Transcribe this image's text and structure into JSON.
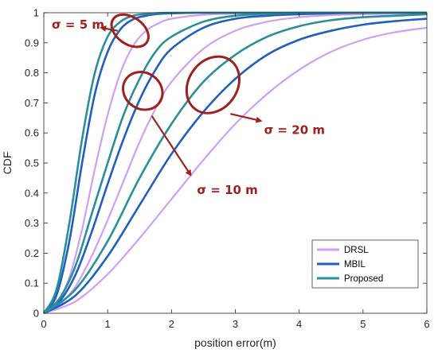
{
  "chart_data": {
    "type": "line",
    "xlabel": "position error(m)",
    "ylabel": "CDF",
    "xlim": [
      0,
      6
    ],
    "ylim": [
      0,
      1
    ],
    "x_ticks": [
      "0",
      "1",
      "2",
      "3",
      "4",
      "5",
      "6"
    ],
    "y_ticks": [
      "0",
      "0.1",
      "0.2",
      "0.3",
      "0.4",
      "0.5",
      "0.6",
      "0.7",
      "0.8",
      "0.9",
      "1"
    ],
    "grid": false,
    "legend_position": "bottom-right",
    "legend": [
      {
        "name": "DRSL",
        "color": "#cf9ef5"
      },
      {
        "name": "MBIL",
        "color": "#1f5fbf"
      },
      {
        "name": "Proposed",
        "color": "#2a8f9a"
      }
    ],
    "groups": [
      {
        "label": "σ = 5 m",
        "series": [
          {
            "name": "DRSL",
            "x": [
              0,
              0.2,
              0.4,
              0.6,
              0.8,
              1.0,
              1.2,
              1.4,
              1.6,
              1.8,
              2.0,
              2.5,
              3.0,
              3.5,
              4.0,
              5.0,
              6.0
            ],
            "y": [
              0,
              0.03,
              0.12,
              0.28,
              0.48,
              0.66,
              0.8,
              0.89,
              0.94,
              0.965,
              0.98,
              0.993,
              0.997,
              0.999,
              1,
              1,
              1
            ]
          },
          {
            "name": "MBIL",
            "x": [
              0,
              0.2,
              0.4,
              0.6,
              0.8,
              1.0,
              1.2,
              1.4,
              1.6,
              1.8,
              2.0,
              2.5,
              3.0,
              3.5,
              4.0,
              5.0,
              6.0
            ],
            "y": [
              0,
              0.06,
              0.24,
              0.5,
              0.73,
              0.87,
              0.945,
              0.978,
              0.99,
              0.996,
              0.998,
              1,
              1,
              1,
              1,
              1,
              1
            ]
          },
          {
            "name": "Proposed",
            "x": [
              0,
              0.2,
              0.4,
              0.6,
              0.8,
              1.0,
              1.2,
              1.4,
              1.6,
              1.8,
              2.0,
              2.5,
              3.0,
              3.5,
              4.0,
              5.0,
              6.0
            ],
            "y": [
              0,
              0.08,
              0.3,
              0.58,
              0.8,
              0.92,
              0.97,
              0.99,
              0.996,
              0.999,
              1,
              1,
              1,
              1,
              1,
              1,
              1
            ]
          }
        ]
      },
      {
        "label": "σ = 10 m",
        "series": [
          {
            "name": "DRSL",
            "x": [
              0,
              0.25,
              0.5,
              0.75,
              1.0,
              1.25,
              1.5,
              1.75,
              2.0,
              2.5,
              3.0,
              3.5,
              4.0,
              4.5,
              5.0,
              6.0
            ],
            "y": [
              0,
              0.03,
              0.09,
              0.19,
              0.31,
              0.44,
              0.57,
              0.68,
              0.77,
              0.88,
              0.94,
              0.97,
              0.985,
              0.992,
              0.995,
              0.998
            ]
          },
          {
            "name": "MBIL",
            "x": [
              0,
              0.25,
              0.5,
              0.75,
              1.0,
              1.25,
              1.5,
              1.75,
              2.0,
              2.5,
              3.0,
              3.5,
              4.0,
              4.5,
              5.0,
              6.0
            ],
            "y": [
              0,
              0.04,
              0.13,
              0.27,
              0.43,
              0.58,
              0.71,
              0.81,
              0.88,
              0.95,
              0.98,
              0.99,
              0.995,
              0.998,
              1,
              1
            ]
          },
          {
            "name": "Proposed",
            "x": [
              0,
              0.25,
              0.5,
              0.75,
              1.0,
              1.25,
              1.5,
              1.75,
              2.0,
              2.5,
              3.0,
              3.5,
              4.0,
              4.5,
              5.0,
              6.0
            ],
            "y": [
              0,
              0.05,
              0.16,
              0.33,
              0.5,
              0.66,
              0.78,
              0.87,
              0.92,
              0.97,
              0.99,
              0.996,
              1,
              1,
              1,
              1
            ]
          }
        ]
      },
      {
        "label": "σ = 20 m",
        "series": [
          {
            "name": "DRSL",
            "x": [
              0,
              0.5,
              1.0,
              1.5,
              2.0,
              2.5,
              3.0,
              3.5,
              4.0,
              4.5,
              5.0,
              5.5,
              6.0
            ],
            "y": [
              0,
              0.04,
              0.13,
              0.25,
              0.38,
              0.51,
              0.63,
              0.73,
              0.81,
              0.87,
              0.91,
              0.935,
              0.95
            ]
          },
          {
            "name": "MBIL",
            "x": [
              0,
              0.5,
              1.0,
              1.5,
              2.0,
              2.5,
              3.0,
              3.5,
              4.0,
              4.5,
              5.0,
              5.5,
              6.0
            ],
            "y": [
              0,
              0.06,
              0.19,
              0.36,
              0.53,
              0.67,
              0.78,
              0.86,
              0.91,
              0.94,
              0.96,
              0.972,
              0.98
            ]
          },
          {
            "name": "Proposed",
            "x": [
              0,
              0.5,
              1.0,
              1.5,
              2.0,
              2.5,
              3.0,
              3.5,
              4.0,
              4.5,
              5.0,
              5.5,
              6.0
            ],
            "y": [
              0,
              0.08,
              0.24,
              0.45,
              0.63,
              0.77,
              0.86,
              0.92,
              0.955,
              0.975,
              0.985,
              0.99,
              0.995
            ]
          }
        ]
      }
    ],
    "annotations": [
      {
        "text": "σ = 5 m",
        "ellipse_center": [
          1.35,
          0.94
        ],
        "ellipse_radius": [
          0.32,
          0.045
        ],
        "arrow_to": [
          0.9,
          0.95
        ],
        "text_at": [
          0.0,
          0.96
        ],
        "color": "#a0201c"
      },
      {
        "text": "σ = 10 m",
        "ellipse_center": [
          1.55,
          0.74
        ],
        "ellipse_radius": [
          0.32,
          0.06
        ],
        "arrow_to": [
          2.3,
          0.46
        ],
        "text_at": [
          2.4,
          0.41
        ],
        "color": "#a0201c"
      },
      {
        "text": "σ = 20 m",
        "ellipse_center": [
          2.65,
          0.76
        ],
        "ellipse_radius": [
          0.38,
          0.1
        ],
        "arrow_to": [
          3.4,
          0.64
        ],
        "text_at": [
          3.45,
          0.61
        ],
        "color": "#a0201c"
      }
    ]
  }
}
